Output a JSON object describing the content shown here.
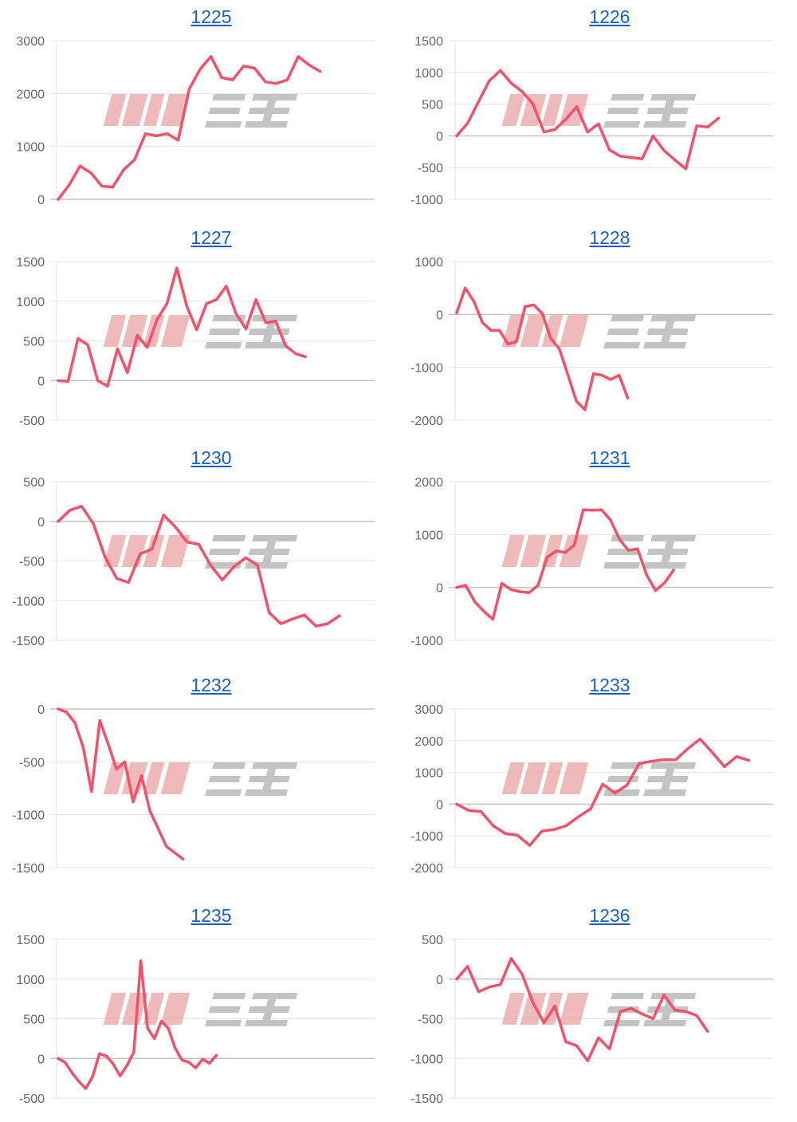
{
  "watermark": "みんレポ",
  "colors": {
    "line": "#f4506a",
    "grid": "#e5e5e5",
    "zero_line": "#c4c4c4",
    "title_link": "#1a5fc8",
    "watermark_pink": "#e9a3a3",
    "watermark_gray": "#b0b0b0"
  },
  "chart_data": [
    {
      "type": "line",
      "title": "1225",
      "ylim": [
        0,
        3000
      ],
      "yticks": [
        "3000",
        "2000",
        "1000",
        "0"
      ],
      "xlim": [
        0,
        29
      ],
      "grid": true,
      "values": [
        0,
        270,
        630,
        500,
        250,
        230,
        560,
        750,
        1240,
        1200,
        1240,
        1120,
        2080,
        2460,
        2700,
        2300,
        2260,
        2520,
        2480,
        2220,
        2190,
        2260,
        2700,
        2540,
        2420
      ]
    },
    {
      "type": "line",
      "title": "1226",
      "ylim": [
        -1000,
        1500
      ],
      "yticks": [
        "1500",
        "1000",
        "500",
        "0",
        "-500",
        "-1000"
      ],
      "xlim": [
        0,
        29
      ],
      "grid": true,
      "values": [
        0,
        200,
        540,
        870,
        1030,
        830,
        700,
        500,
        60,
        100,
        260,
        460,
        60,
        190,
        -220,
        -320,
        -340,
        -360,
        0,
        -230,
        -380,
        -520,
        160,
        140,
        280
      ]
    },
    {
      "type": "line",
      "title": "1227",
      "ylim": [
        -500,
        1500
      ],
      "yticks": [
        "1500",
        "1000",
        "500",
        "0",
        "-500"
      ],
      "xlim": [
        0,
        32
      ],
      "grid": true,
      "values": [
        0,
        -10,
        530,
        450,
        0,
        -70,
        400,
        100,
        570,
        420,
        770,
        970,
        1420,
        940,
        640,
        970,
        1020,
        1190,
        840,
        650,
        1020,
        730,
        750,
        440,
        340,
        300
      ]
    },
    {
      "type": "line",
      "title": "1228",
      "ylim": [
        -2000,
        1000
      ],
      "yticks": [
        "1000",
        "0",
        "-1000",
        "-2000"
      ],
      "xlim": [
        0,
        37
      ],
      "grid": true,
      "values": [
        30,
        500,
        250,
        -150,
        -300,
        -300,
        -560,
        -510,
        150,
        180,
        20,
        -450,
        -650,
        -1140,
        -1640,
        -1800,
        -1120,
        -1150,
        -1230,
        -1150,
        -1580
      ]
    },
    {
      "type": "line",
      "title": "1230",
      "ylim": [
        -1500,
        500
      ],
      "yticks": [
        "500",
        "0",
        "-500",
        "-1000",
        "-1500"
      ],
      "xlim": [
        0,
        27
      ],
      "grid": true,
      "values": [
        0,
        140,
        190,
        -30,
        -450,
        -720,
        -770,
        -410,
        -350,
        80,
        -70,
        -260,
        -290,
        -550,
        -740,
        -570,
        -460,
        -550,
        -1150,
        -1290,
        -1230,
        -1180,
        -1320,
        -1290,
        -1190
      ]
    },
    {
      "type": "line",
      "title": "1231",
      "ylim": [
        -1000,
        2000
      ],
      "yticks": [
        "2000",
        "1000",
        "0",
        "-1000"
      ],
      "xlim": [
        0,
        35
      ],
      "grid": true,
      "values": [
        0,
        40,
        -270,
        -450,
        -600,
        80,
        -40,
        -80,
        -100,
        40,
        570,
        690,
        660,
        800,
        1470,
        1460,
        1470,
        1280,
        910,
        700,
        730,
        240,
        -60,
        90,
        330
      ]
    },
    {
      "type": "line",
      "title": "1232",
      "ylim": [
        -1500,
        0
      ],
      "yticks": [
        "0",
        "-500",
        "-1000",
        "-1500"
      ],
      "xlim": [
        0,
        38
      ],
      "grid": true,
      "values": [
        0,
        -30,
        -130,
        -360,
        -780,
        -110,
        -330,
        -570,
        -500,
        -880,
        -630,
        -960,
        -1130,
        -1300,
        -1360,
        -1420
      ]
    },
    {
      "type": "line",
      "title": "1233",
      "ylim": [
        -2000,
        3000
      ],
      "yticks": [
        "3000",
        "2000",
        "1000",
        "0",
        "-1000",
        "-2000"
      ],
      "xlim": [
        0,
        26
      ],
      "grid": true,
      "values": [
        0,
        -200,
        -230,
        -680,
        -930,
        -980,
        -1300,
        -850,
        -800,
        -680,
        -400,
        -150,
        630,
        350,
        600,
        1280,
        1350,
        1400,
        1400,
        1750,
        2050,
        1630,
        1180,
        1500,
        1380
      ]
    },
    {
      "type": "line",
      "title": "1235",
      "ylim": [
        -500,
        1500
      ],
      "yticks": [
        "1500",
        "1000",
        "500",
        "0",
        "-500"
      ],
      "xlim": [
        0,
        46
      ],
      "grid": true,
      "values": [
        0,
        -50,
        -180,
        -290,
        -380,
        -230,
        60,
        30,
        -70,
        -220,
        -90,
        80,
        1230,
        380,
        250,
        470,
        380,
        130,
        -20,
        -50,
        -120,
        -10,
        -60,
        40
      ]
    },
    {
      "type": "line",
      "title": "1236",
      "ylim": [
        -1500,
        500
      ],
      "yticks": [
        "500",
        "0",
        "-500",
        "-1000",
        "-1500"
      ],
      "xlim": [
        0,
        29
      ],
      "grid": true,
      "values": [
        0,
        160,
        -160,
        -100,
        -70,
        260,
        60,
        -300,
        -550,
        -340,
        -790,
        -840,
        -1030,
        -740,
        -880,
        -410,
        -370,
        -440,
        -500,
        -200,
        -390,
        -410,
        -460,
        -660
      ]
    }
  ]
}
